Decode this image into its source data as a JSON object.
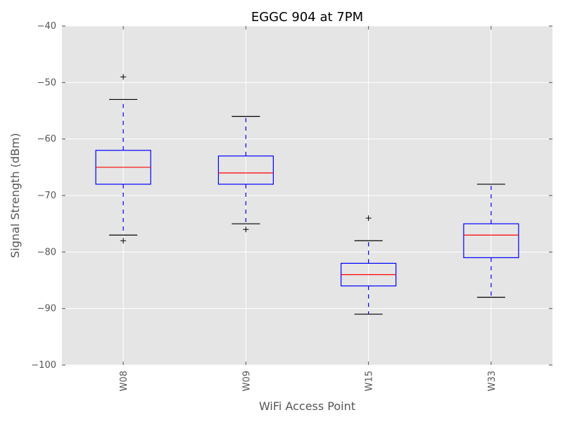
{
  "chart_data": {
    "type": "box",
    "title": "EGGC 904 at 7PM",
    "xlabel": "WiFi Access Point",
    "ylabel": "Signal Strength (dBm)",
    "ylim": [
      -100,
      -40
    ],
    "yticks": [
      -40,
      -50,
      -60,
      -70,
      -80,
      -90,
      -100
    ],
    "ytick_labels": [
      "−40",
      "−50",
      "−60",
      "−70",
      "−80",
      "−90",
      "−100"
    ],
    "grid": true,
    "categories": [
      "W08",
      "W09",
      "W15",
      "W33"
    ],
    "boxes": [
      {
        "name": "W08",
        "whisker_low": -77,
        "q1": -68,
        "median": -65,
        "q3": -62,
        "whisker_high": -53,
        "outliers": [
          -49,
          -78
        ]
      },
      {
        "name": "W09",
        "whisker_low": -75,
        "q1": -68,
        "median": -66,
        "q3": -63,
        "whisker_high": -56,
        "outliers": [
          -76
        ]
      },
      {
        "name": "W15",
        "whisker_low": -91,
        "q1": -86,
        "median": -84,
        "q3": -82,
        "whisker_high": -78,
        "outliers": [
          -74
        ]
      },
      {
        "name": "W33",
        "whisker_low": -88,
        "q1": -81,
        "median": -77,
        "q3": -75,
        "whisker_high": -68,
        "outliers": []
      }
    ],
    "colors": {
      "plot_background": "#e5e5e5",
      "grid": "#ffffff",
      "box": "#0000ff",
      "median": "#ff0000",
      "whisker": "#0000ff",
      "cap": "#000000",
      "flier": "#000000"
    }
  }
}
